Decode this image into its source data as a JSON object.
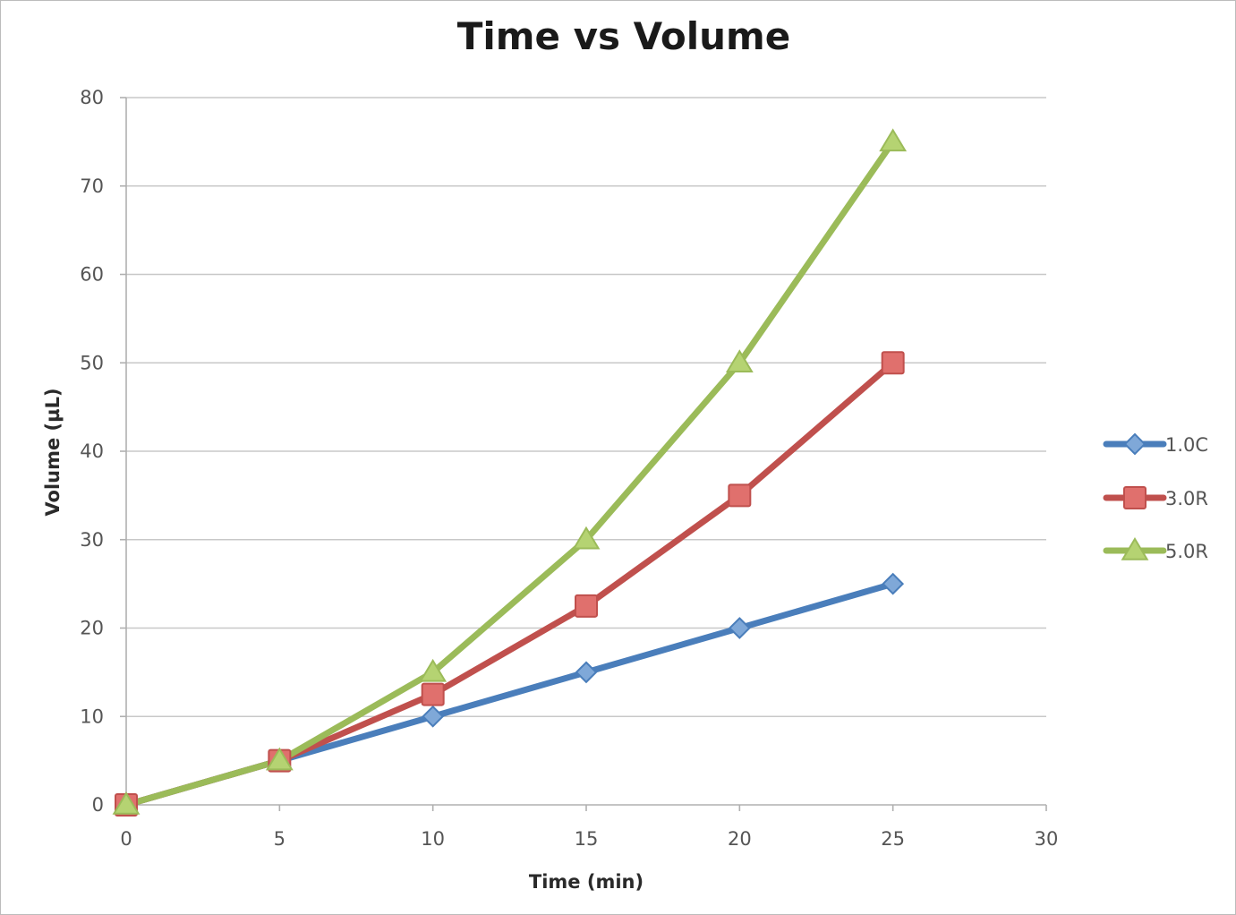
{
  "chart_data": {
    "type": "line",
    "title": "Time vs Volume",
    "xlabel": "Time (min)",
    "ylabel": "Volume (µL)",
    "x": [
      0,
      5,
      10,
      15,
      20,
      25
    ],
    "xlim": [
      0,
      30
    ],
    "ylim": [
      0,
      80
    ],
    "x_ticks": [
      0,
      5,
      10,
      15,
      20,
      25,
      30
    ],
    "y_ticks": [
      0,
      10,
      20,
      30,
      40,
      50,
      60,
      70,
      80
    ],
    "grid": "horizontal",
    "legend_position": "right",
    "series": [
      {
        "name": "1.0C",
        "values": [
          0,
          5,
          10,
          15,
          20,
          25
        ],
        "color": "#4a7ebb",
        "fill": "#7fa8d8",
        "marker": "diamond"
      },
      {
        "name": "3.0R",
        "values": [
          0,
          5,
          12.5,
          22.5,
          35,
          50
        ],
        "color": "#c0504d",
        "fill": "#e0706d",
        "marker": "square"
      },
      {
        "name": "5.0R",
        "values": [
          0,
          5,
          15,
          30,
          50,
          75
        ],
        "color": "#9bbb59",
        "fill": "#b5d372",
        "marker": "triangle"
      }
    ]
  }
}
